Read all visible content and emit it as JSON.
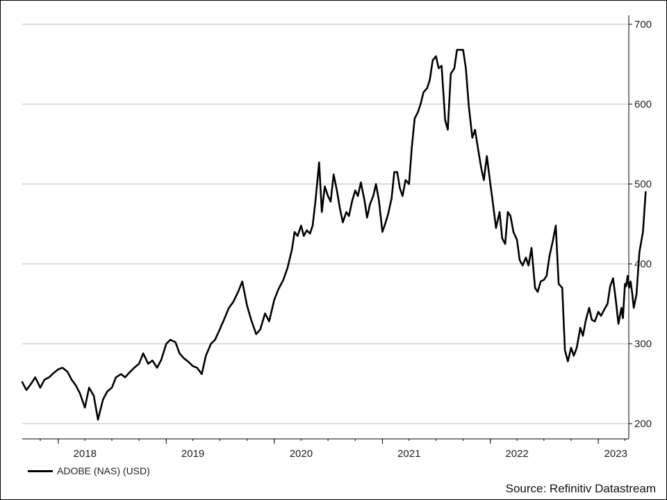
{
  "chart_data": {
    "type": "line",
    "title": "",
    "xlabel": "",
    "ylabel": "",
    "ylim": [
      190,
      710
    ],
    "y_ticks": [
      200,
      300,
      400,
      500,
      600,
      700
    ],
    "y_tick_labels": [
      "200",
      "300",
      "400",
      "500",
      "600",
      "700"
    ],
    "x_range": [
      "2017-09-01",
      "2023-04-14"
    ],
    "x_year_labels": [
      {
        "label": "2018",
        "date": "2018-04-01"
      },
      {
        "label": "2019",
        "date": "2019-04-01"
      },
      {
        "label": "2020",
        "date": "2020-04-01"
      },
      {
        "label": "2021",
        "date": "2021-04-01"
      },
      {
        "label": "2022",
        "date": "2022-04-01"
      },
      {
        "label": "2023",
        "date": "2023-03-01"
      }
    ],
    "x_minor_ticks": [
      "2017-11-01",
      "2018-01-01",
      "2018-04-01",
      "2018-07-01",
      "2018-10-01",
      "2019-01-01",
      "2019-04-01",
      "2019-07-01",
      "2019-10-01",
      "2020-01-01",
      "2020-04-01",
      "2020-07-01",
      "2020-10-01",
      "2021-01-01",
      "2021-04-01",
      "2021-07-01",
      "2021-10-01",
      "2022-01-01",
      "2022-04-01",
      "2022-07-01",
      "2022-10-01",
      "2023-01-01",
      "2023-04-01"
    ],
    "x_major_ticks": [
      "2018-01-01",
      "2019-01-01",
      "2020-01-01",
      "2021-01-01",
      "2022-01-01",
      "2023-01-01"
    ],
    "grid": true,
    "legend_position": "bottom-left",
    "series": [
      {
        "name": "ADOBE (NAS) (USD)",
        "color": "#000000",
        "points": [
          [
            "2017-09-01",
            252
          ],
          [
            "2017-09-15",
            242
          ],
          [
            "2017-10-01",
            250
          ],
          [
            "2017-10-15",
            258
          ],
          [
            "2017-11-01",
            245
          ],
          [
            "2017-11-15",
            255
          ],
          [
            "2017-12-01",
            258
          ],
          [
            "2017-12-15",
            263
          ],
          [
            "2018-01-01",
            268
          ],
          [
            "2018-01-15",
            270
          ],
          [
            "2018-02-01",
            265
          ],
          [
            "2018-02-15",
            255
          ],
          [
            "2018-03-01",
            248
          ],
          [
            "2018-03-15",
            238
          ],
          [
            "2018-04-01",
            220
          ],
          [
            "2018-04-15",
            245
          ],
          [
            "2018-05-01",
            235
          ],
          [
            "2018-05-15",
            205
          ],
          [
            "2018-06-01",
            230
          ],
          [
            "2018-06-15",
            240
          ],
          [
            "2018-07-01",
            245
          ],
          [
            "2018-07-15",
            258
          ],
          [
            "2018-08-01",
            262
          ],
          [
            "2018-08-15",
            258
          ],
          [
            "2018-09-01",
            265
          ],
          [
            "2018-09-15",
            270
          ],
          [
            "2018-10-01",
            275
          ],
          [
            "2018-10-15",
            288
          ],
          [
            "2018-11-01",
            275
          ],
          [
            "2018-11-15",
            279
          ],
          [
            "2018-12-01",
            270
          ],
          [
            "2018-12-15",
            280
          ],
          [
            "2019-01-01",
            300
          ],
          [
            "2019-01-15",
            305
          ],
          [
            "2019-02-01",
            302
          ],
          [
            "2019-02-15",
            288
          ],
          [
            "2019-03-01",
            282
          ],
          [
            "2019-03-15",
            278
          ],
          [
            "2019-04-01",
            272
          ],
          [
            "2019-04-15",
            270
          ],
          [
            "2019-05-01",
            262
          ],
          [
            "2019-05-15",
            285
          ],
          [
            "2019-06-01",
            300
          ],
          [
            "2019-06-15",
            305
          ],
          [
            "2019-07-01",
            318
          ],
          [
            "2019-07-15",
            330
          ],
          [
            "2019-08-01",
            345
          ],
          [
            "2019-08-15",
            352
          ],
          [
            "2019-09-01",
            365
          ],
          [
            "2019-09-15",
            378
          ],
          [
            "2019-10-01",
            348
          ],
          [
            "2019-10-15",
            330
          ],
          [
            "2019-11-01",
            312
          ],
          [
            "2019-11-15",
            318
          ],
          [
            "2019-12-01",
            338
          ],
          [
            "2019-12-15",
            328
          ],
          [
            "2020-01-01",
            355
          ],
          [
            "2020-01-15",
            368
          ],
          [
            "2020-02-01",
            380
          ],
          [
            "2020-02-15",
            395
          ],
          [
            "2020-03-01",
            418
          ],
          [
            "2020-03-10",
            440
          ],
          [
            "2020-03-20",
            435
          ],
          [
            "2020-04-01",
            448
          ],
          [
            "2020-04-10",
            435
          ],
          [
            "2020-04-20",
            442
          ],
          [
            "2020-05-01",
            438
          ],
          [
            "2020-05-10",
            448
          ],
          [
            "2020-05-20",
            480
          ],
          [
            "2020-06-01",
            527
          ],
          [
            "2020-06-10",
            465
          ],
          [
            "2020-06-20",
            497
          ],
          [
            "2020-07-01",
            485
          ],
          [
            "2020-07-10",
            478
          ],
          [
            "2020-07-20",
            512
          ],
          [
            "2020-08-01",
            490
          ],
          [
            "2020-08-10",
            470
          ],
          [
            "2020-08-20",
            452
          ],
          [
            "2020-09-01",
            465
          ],
          [
            "2020-09-10",
            460
          ],
          [
            "2020-09-20",
            478
          ],
          [
            "2020-10-01",
            492
          ],
          [
            "2020-10-10",
            485
          ],
          [
            "2020-10-20",
            502
          ],
          [
            "2020-11-01",
            480
          ],
          [
            "2020-11-10",
            458
          ],
          [
            "2020-11-20",
            475
          ],
          [
            "2020-12-01",
            485
          ],
          [
            "2020-12-10",
            500
          ],
          [
            "2020-12-20",
            480
          ],
          [
            "2021-01-01",
            440
          ],
          [
            "2021-01-10",
            450
          ],
          [
            "2021-01-20",
            462
          ],
          [
            "2021-02-01",
            482
          ],
          [
            "2021-02-10",
            515
          ],
          [
            "2021-02-20",
            515
          ],
          [
            "2021-03-01",
            495
          ],
          [
            "2021-03-10",
            485
          ],
          [
            "2021-03-20",
            505
          ],
          [
            "2021-04-01",
            500
          ],
          [
            "2021-04-10",
            545
          ],
          [
            "2021-04-20",
            582
          ],
          [
            "2021-05-01",
            590
          ],
          [
            "2021-05-10",
            600
          ],
          [
            "2021-05-20",
            615
          ],
          [
            "2021-06-01",
            620
          ],
          [
            "2021-06-10",
            630
          ],
          [
            "2021-06-20",
            655
          ],
          [
            "2021-07-01",
            660
          ],
          [
            "2021-07-10",
            645
          ],
          [
            "2021-07-20",
            648
          ],
          [
            "2021-08-01",
            580
          ],
          [
            "2021-08-10",
            568
          ],
          [
            "2021-08-20",
            638
          ],
          [
            "2021-09-01",
            645
          ],
          [
            "2021-09-10",
            668
          ],
          [
            "2021-09-20",
            668
          ],
          [
            "2021-10-01",
            668
          ],
          [
            "2021-10-10",
            645
          ],
          [
            "2021-10-20",
            598
          ],
          [
            "2021-11-01",
            558
          ],
          [
            "2021-11-10",
            568
          ],
          [
            "2021-11-20",
            545
          ],
          [
            "2021-12-01",
            520
          ],
          [
            "2021-12-10",
            505
          ],
          [
            "2021-12-20",
            535
          ],
          [
            "2022-01-01",
            500
          ],
          [
            "2022-01-10",
            475
          ],
          [
            "2022-01-20",
            445
          ],
          [
            "2022-02-01",
            465
          ],
          [
            "2022-02-10",
            432
          ],
          [
            "2022-02-20",
            425
          ],
          [
            "2022-03-01",
            465
          ],
          [
            "2022-03-10",
            460
          ],
          [
            "2022-03-20",
            440
          ],
          [
            "2022-04-01",
            430
          ],
          [
            "2022-04-10",
            405
          ],
          [
            "2022-04-20",
            398
          ],
          [
            "2022-05-01",
            408
          ],
          [
            "2022-05-10",
            398
          ],
          [
            "2022-05-20",
            420
          ],
          [
            "2022-06-01",
            370
          ],
          [
            "2022-06-10",
            365
          ],
          [
            "2022-06-20",
            378
          ],
          [
            "2022-07-01",
            380
          ],
          [
            "2022-07-10",
            385
          ],
          [
            "2022-07-20",
            410
          ],
          [
            "2022-08-01",
            430
          ],
          [
            "2022-08-10",
            448
          ],
          [
            "2022-08-20",
            375
          ],
          [
            "2022-09-01",
            370
          ],
          [
            "2022-09-10",
            292
          ],
          [
            "2022-09-20",
            278
          ],
          [
            "2022-10-01",
            295
          ],
          [
            "2022-10-10",
            285
          ],
          [
            "2022-10-20",
            295
          ],
          [
            "2022-11-01",
            320
          ],
          [
            "2022-11-10",
            310
          ],
          [
            "2022-11-20",
            330
          ],
          [
            "2022-12-01",
            345
          ],
          [
            "2022-12-10",
            330
          ],
          [
            "2022-12-20",
            328
          ],
          [
            "2023-01-01",
            340
          ],
          [
            "2023-01-10",
            335
          ],
          [
            "2023-01-20",
            342
          ],
          [
            "2023-02-01",
            350
          ],
          [
            "2023-02-10",
            372
          ],
          [
            "2023-02-20",
            382
          ],
          [
            "2023-03-01",
            355
          ],
          [
            "2023-03-10",
            325
          ],
          [
            "2023-03-20",
            345
          ],
          [
            "2023-03-25",
            332
          ],
          [
            "2023-04-01",
            375
          ],
          [
            "2023-04-05",
            372
          ],
          [
            "2023-04-10",
            385
          ],
          [
            "2023-04-15",
            370
          ],
          [
            "2023-04-20",
            378
          ],
          [
            "2023-04-25",
            365
          ],
          [
            "2023-05-01",
            345
          ],
          [
            "2023-05-10",
            362
          ],
          [
            "2023-05-20",
            415
          ],
          [
            "2023-06-01",
            440
          ],
          [
            "2023-06-10",
            490
          ]
        ]
      }
    ]
  },
  "legend": {
    "label": "ADOBE (NAS) (USD)"
  },
  "source": {
    "text": "Source: Refinitiv Datastream"
  }
}
